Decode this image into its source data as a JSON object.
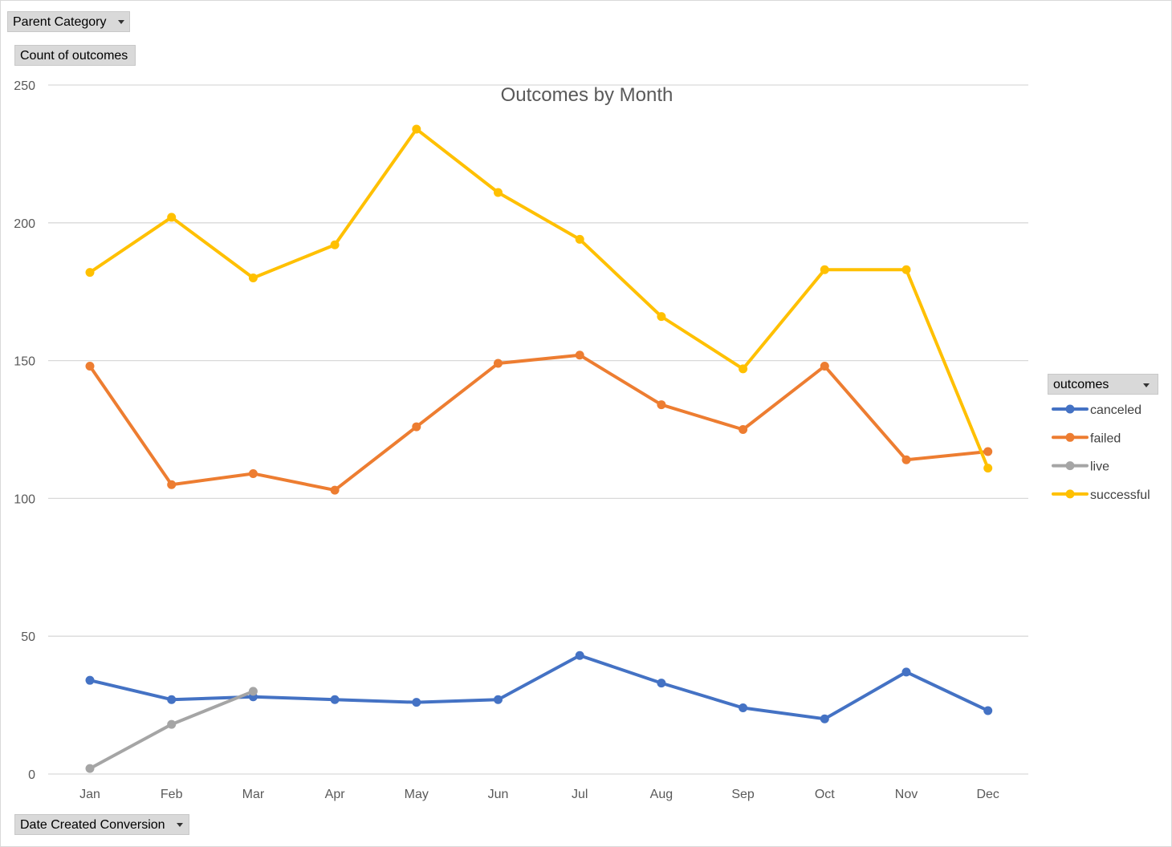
{
  "fields": {
    "parent_category": "Parent Category",
    "value_field": "Count of outcomes",
    "axis_field": "Date Created Conversion",
    "legend_field": "outcomes"
  },
  "chart_data": {
    "type": "line",
    "title": "Outcomes by Month",
    "xlabel": "",
    "ylabel": "",
    "categories": [
      "Jan",
      "Feb",
      "Mar",
      "Apr",
      "May",
      "Jun",
      "Jul",
      "Aug",
      "Sep",
      "Oct",
      "Nov",
      "Dec"
    ],
    "ylim": [
      0,
      250
    ],
    "yticks": [
      0,
      50,
      100,
      150,
      200,
      250
    ],
    "grid": true,
    "legend_position": "right",
    "series": [
      {
        "name": "canceled",
        "color": "#4472c4",
        "values": [
          34,
          27,
          28,
          27,
          26,
          27,
          43,
          33,
          24,
          20,
          37,
          23
        ]
      },
      {
        "name": "failed",
        "color": "#ed7d31",
        "values": [
          148,
          105,
          109,
          103,
          126,
          149,
          152,
          134,
          125,
          148,
          114,
          117
        ]
      },
      {
        "name": "live",
        "color": "#a5a5a5",
        "values": [
          2,
          18,
          30,
          null,
          null,
          null,
          null,
          null,
          null,
          null,
          null,
          null
        ]
      },
      {
        "name": "successful",
        "color": "#ffc000",
        "values": [
          182,
          202,
          180,
          192,
          234,
          211,
          194,
          166,
          147,
          183,
          183,
          111
        ]
      }
    ]
  }
}
